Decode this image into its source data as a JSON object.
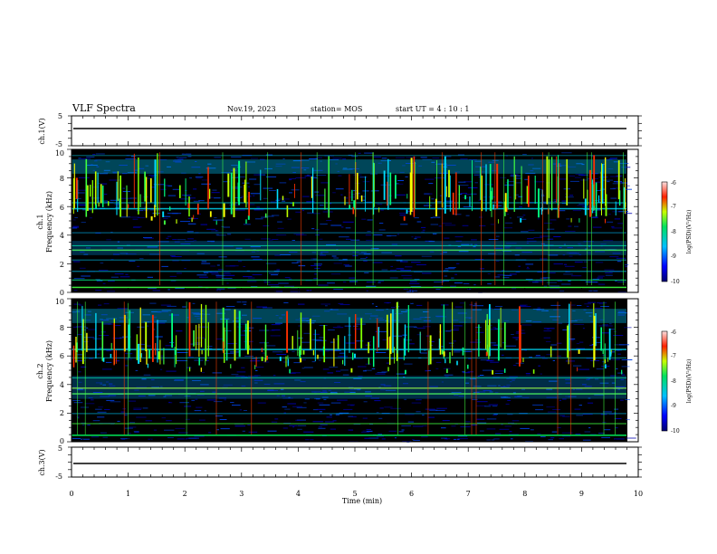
{
  "header": {
    "title": "VLF Spectra",
    "date": "Nov.19, 2023",
    "station": "station= MOS",
    "start_ut": "start  UT =   4 : 10 : 1"
  },
  "chart_data": [
    {
      "type": "line",
      "panel": "ch1-waveform",
      "ylabel": "ch.1(V)",
      "ylim": [
        -5,
        5
      ],
      "y_tick_labels": [
        "5",
        "-5"
      ],
      "x": [
        0,
        9.8
      ],
      "y": [
        0,
        0
      ]
    },
    {
      "type": "heatmap",
      "panel": "ch1-spectrogram",
      "ylabel": "ch.1\nFrequency  (kHz)",
      "ylabel_lines": [
        "ch.1",
        "Frequency  (kHz)"
      ],
      "ylim": [
        0,
        10
      ],
      "y_tick_labels": [
        "0",
        "2",
        "4",
        "6",
        "8",
        "10"
      ],
      "xlim": [
        0,
        10
      ],
      "colorbar": {
        "label": "log(PSD)(V²/Hz)",
        "range": [
          -10,
          -6
        ],
        "tick_labels": [
          "-6",
          "-7",
          "-8",
          "-9",
          "-10"
        ]
      }
    },
    {
      "type": "heatmap",
      "panel": "ch2-spectrogram",
      "ylabel": "ch.2\nFrequency  (kHz)",
      "ylabel_lines": [
        "ch.2",
        "Frequency  (kHz)"
      ],
      "ylim": [
        0,
        10
      ],
      "y_tick_labels": [
        "0",
        "2",
        "4",
        "6",
        "8",
        "10"
      ],
      "xlim": [
        0,
        10
      ],
      "colorbar": {
        "label": "log(PSD)(V²/Hz)",
        "range": [
          -10,
          -6
        ],
        "tick_labels": [
          "-6",
          "-7",
          "-8",
          "-9",
          "-10"
        ]
      }
    },
    {
      "type": "line",
      "panel": "ch3-waveform",
      "ylabel": "ch.3(V)",
      "ylim": [
        -5,
        5
      ],
      "y_tick_labels": [
        "5",
        "-5"
      ],
      "x": [
        0,
        9.8
      ],
      "y": [
        0,
        0
      ]
    }
  ],
  "x_axis": {
    "label": "Time  (min)",
    "range": [
      0,
      10
    ],
    "tick_labels": [
      "0",
      "1",
      "2",
      "3",
      "4",
      "5",
      "6",
      "7",
      "8",
      "9",
      "10"
    ]
  }
}
